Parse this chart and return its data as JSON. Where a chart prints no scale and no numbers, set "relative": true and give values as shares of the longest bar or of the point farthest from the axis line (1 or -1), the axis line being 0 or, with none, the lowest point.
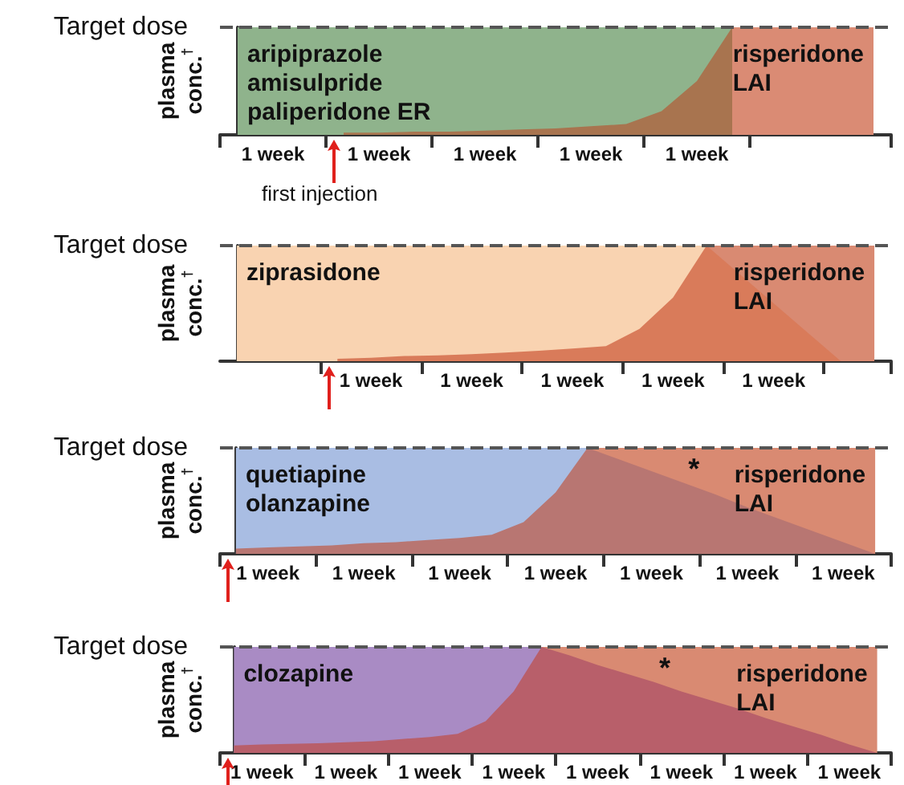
{
  "chart_data": [
    {
      "type": "area",
      "relative": true,
      "ylabel": "plasma conc.$^{†}$",
      "categories": [
        null,
        "1 week",
        null,
        null,
        "1 week",
        null,
        null,
        "1 week",
        null,
        null,
        "1 week",
        null,
        null,
        "1 week",
        null,
        null,
        null,
        null,
        null
      ],
      "series": [
        {
          "name": "risperidone\nLAI",
          "color": "#da8b74",
          "values": [
            null,
            null,
            null,
            null,
            null,
            null,
            null,
            null,
            null,
            null,
            null,
            null,
            null,
            null,
            1,
            1,
            1,
            1,
            1
          ]
        },
        {
          "name": "aripiprazole\namisulpride\npaliperidone ER",
          "color": "#8fb38c",
          "values": [
            1,
            1,
            1,
            1,
            1,
            1,
            1,
            1,
            1,
            1,
            1,
            1,
            1,
            1,
            1,
            null,
            null,
            null,
            null
          ]
        },
        {
          "color": "#a8744f",
          "values": [
            null,
            null,
            null,
            0.02,
            0.02,
            0.03,
            0.03,
            0.04,
            0.05,
            0.06,
            0.08,
            0.1,
            0.22,
            0.5,
            1,
            null,
            null,
            null,
            null
          ]
        }
      ],
      "ref_lines": [
        {
          "axis": "y",
          "value": 1,
          "label": "Target dose",
          "line_style": "dashed",
          "color": "#555555"
        }
      ],
      "annotations": [
        "first injection"
      ]
    },
    {
      "type": "area",
      "relative": true,
      "ylabel": "plasma conc.$^{†}$",
      "categories": [
        null,
        null,
        null,
        null,
        "1 week",
        null,
        null,
        "1 week",
        null,
        null,
        "1 week",
        null,
        null,
        "1 week",
        null,
        null,
        "1 week",
        null,
        null,
        null
      ],
      "series": [
        {
          "name": "risperidone\nLAI",
          "color": "#d98a72",
          "values": [
            null,
            null,
            null,
            null,
            null,
            null,
            null,
            null,
            null,
            null,
            null,
            null,
            null,
            null,
            1,
            1,
            1,
            1,
            1,
            1
          ]
        },
        {
          "name": "ziprasidone",
          "color": "#f9d3b1",
          "values": [
            1,
            1,
            1,
            1,
            1,
            1,
            1,
            1,
            1,
            1,
            1,
            1,
            1,
            1,
            1,
            null,
            null,
            null,
            null,
            null
          ]
        },
        {
          "color": "#d97b5a",
          "values": [
            null,
            null,
            null,
            0.02,
            0.03,
            0.045,
            0.05,
            0.06,
            0.075,
            0.09,
            0.11,
            0.13,
            0.28,
            0.55,
            1,
            0.75,
            0.5,
            0.25,
            0,
            null
          ]
        }
      ],
      "ref_lines": [
        {
          "axis": "y",
          "value": 1,
          "label": "Target dose",
          "line_style": "dashed",
          "color": "#555555"
        }
      ]
    },
    {
      "type": "area",
      "relative": true,
      "ylabel": "plasma conc.$^{†}$",
      "categories": [
        null,
        "1 week",
        null,
        null,
        "1 week",
        null,
        null,
        "1 week",
        null,
        null,
        "1 week",
        null,
        null,
        "1 week",
        null,
        null,
        "1 week",
        null,
        null,
        "1 week",
        null
      ],
      "series": [
        {
          "name": "risperidone\nLAI",
          "color": "#d98a72",
          "values": [
            null,
            null,
            null,
            null,
            null,
            null,
            null,
            null,
            null,
            null,
            null,
            1,
            1,
            1,
            1,
            1,
            1,
            1,
            1,
            1,
            1
          ]
        },
        {
          "name": "quetiapine\nolanzapine",
          "color": "#a9bde3",
          "values": [
            1,
            1,
            1,
            1,
            1,
            1,
            1,
            1,
            1,
            1,
            1,
            1,
            null,
            null,
            null,
            null,
            null,
            null,
            null,
            null,
            null
          ]
        },
        {
          "color": "#b87672",
          "values": [
            0.05,
            0.06,
            0.07,
            0.08,
            0.1,
            0.11,
            0.13,
            0.15,
            0.18,
            0.3,
            0.58,
            1,
            0.89,
            0.78,
            0.67,
            0.56,
            0.44,
            0.33,
            0.22,
            0.11,
            0
          ]
        }
      ],
      "ref_lines": [
        {
          "axis": "y",
          "value": 1,
          "label": "Target dose",
          "line_style": "dashed",
          "color": "#555555"
        }
      ],
      "annotations": [
        "*"
      ]
    },
    {
      "type": "area",
      "relative": true,
      "ylabel": "plasma conc.$^{†}$",
      "categories": [
        null,
        "1 week",
        null,
        null,
        "1 week",
        null,
        null,
        "1 week",
        null,
        null,
        "1 week",
        null,
        null,
        "1 week",
        null,
        null,
        "1 week",
        null,
        null,
        "1 week",
        null,
        null,
        "1 week",
        null
      ],
      "series": [
        {
          "name": "risperidone\nLAI",
          "color": "#d98a72",
          "values": [
            null,
            null,
            null,
            null,
            null,
            null,
            null,
            null,
            null,
            null,
            null,
            1,
            1,
            1,
            1,
            1,
            1,
            1,
            1,
            1,
            1,
            1,
            1,
            1
          ]
        },
        {
          "name": "clozapine",
          "color": "#a98bc4",
          "values": [
            1,
            1,
            1,
            1,
            1,
            1,
            1,
            1,
            1,
            1,
            1,
            1,
            null,
            null,
            null,
            null,
            null,
            null,
            null,
            null,
            null,
            null,
            null,
            null
          ]
        },
        {
          "color": "#b85f6a",
          "values": [
            0.07,
            0.08,
            0.085,
            0.09,
            0.1,
            0.11,
            0.13,
            0.15,
            0.18,
            0.3,
            0.58,
            1,
            0.92,
            0.83,
            0.75,
            0.67,
            0.58,
            0.5,
            0.42,
            0.33,
            0.25,
            0.17,
            0.08,
            0
          ]
        }
      ],
      "ref_lines": [
        {
          "axis": "y",
          "value": 1,
          "label": "Target dose",
          "line_style": "dashed",
          "color": "#555555"
        }
      ],
      "annotations": [
        "*"
      ]
    }
  ]
}
